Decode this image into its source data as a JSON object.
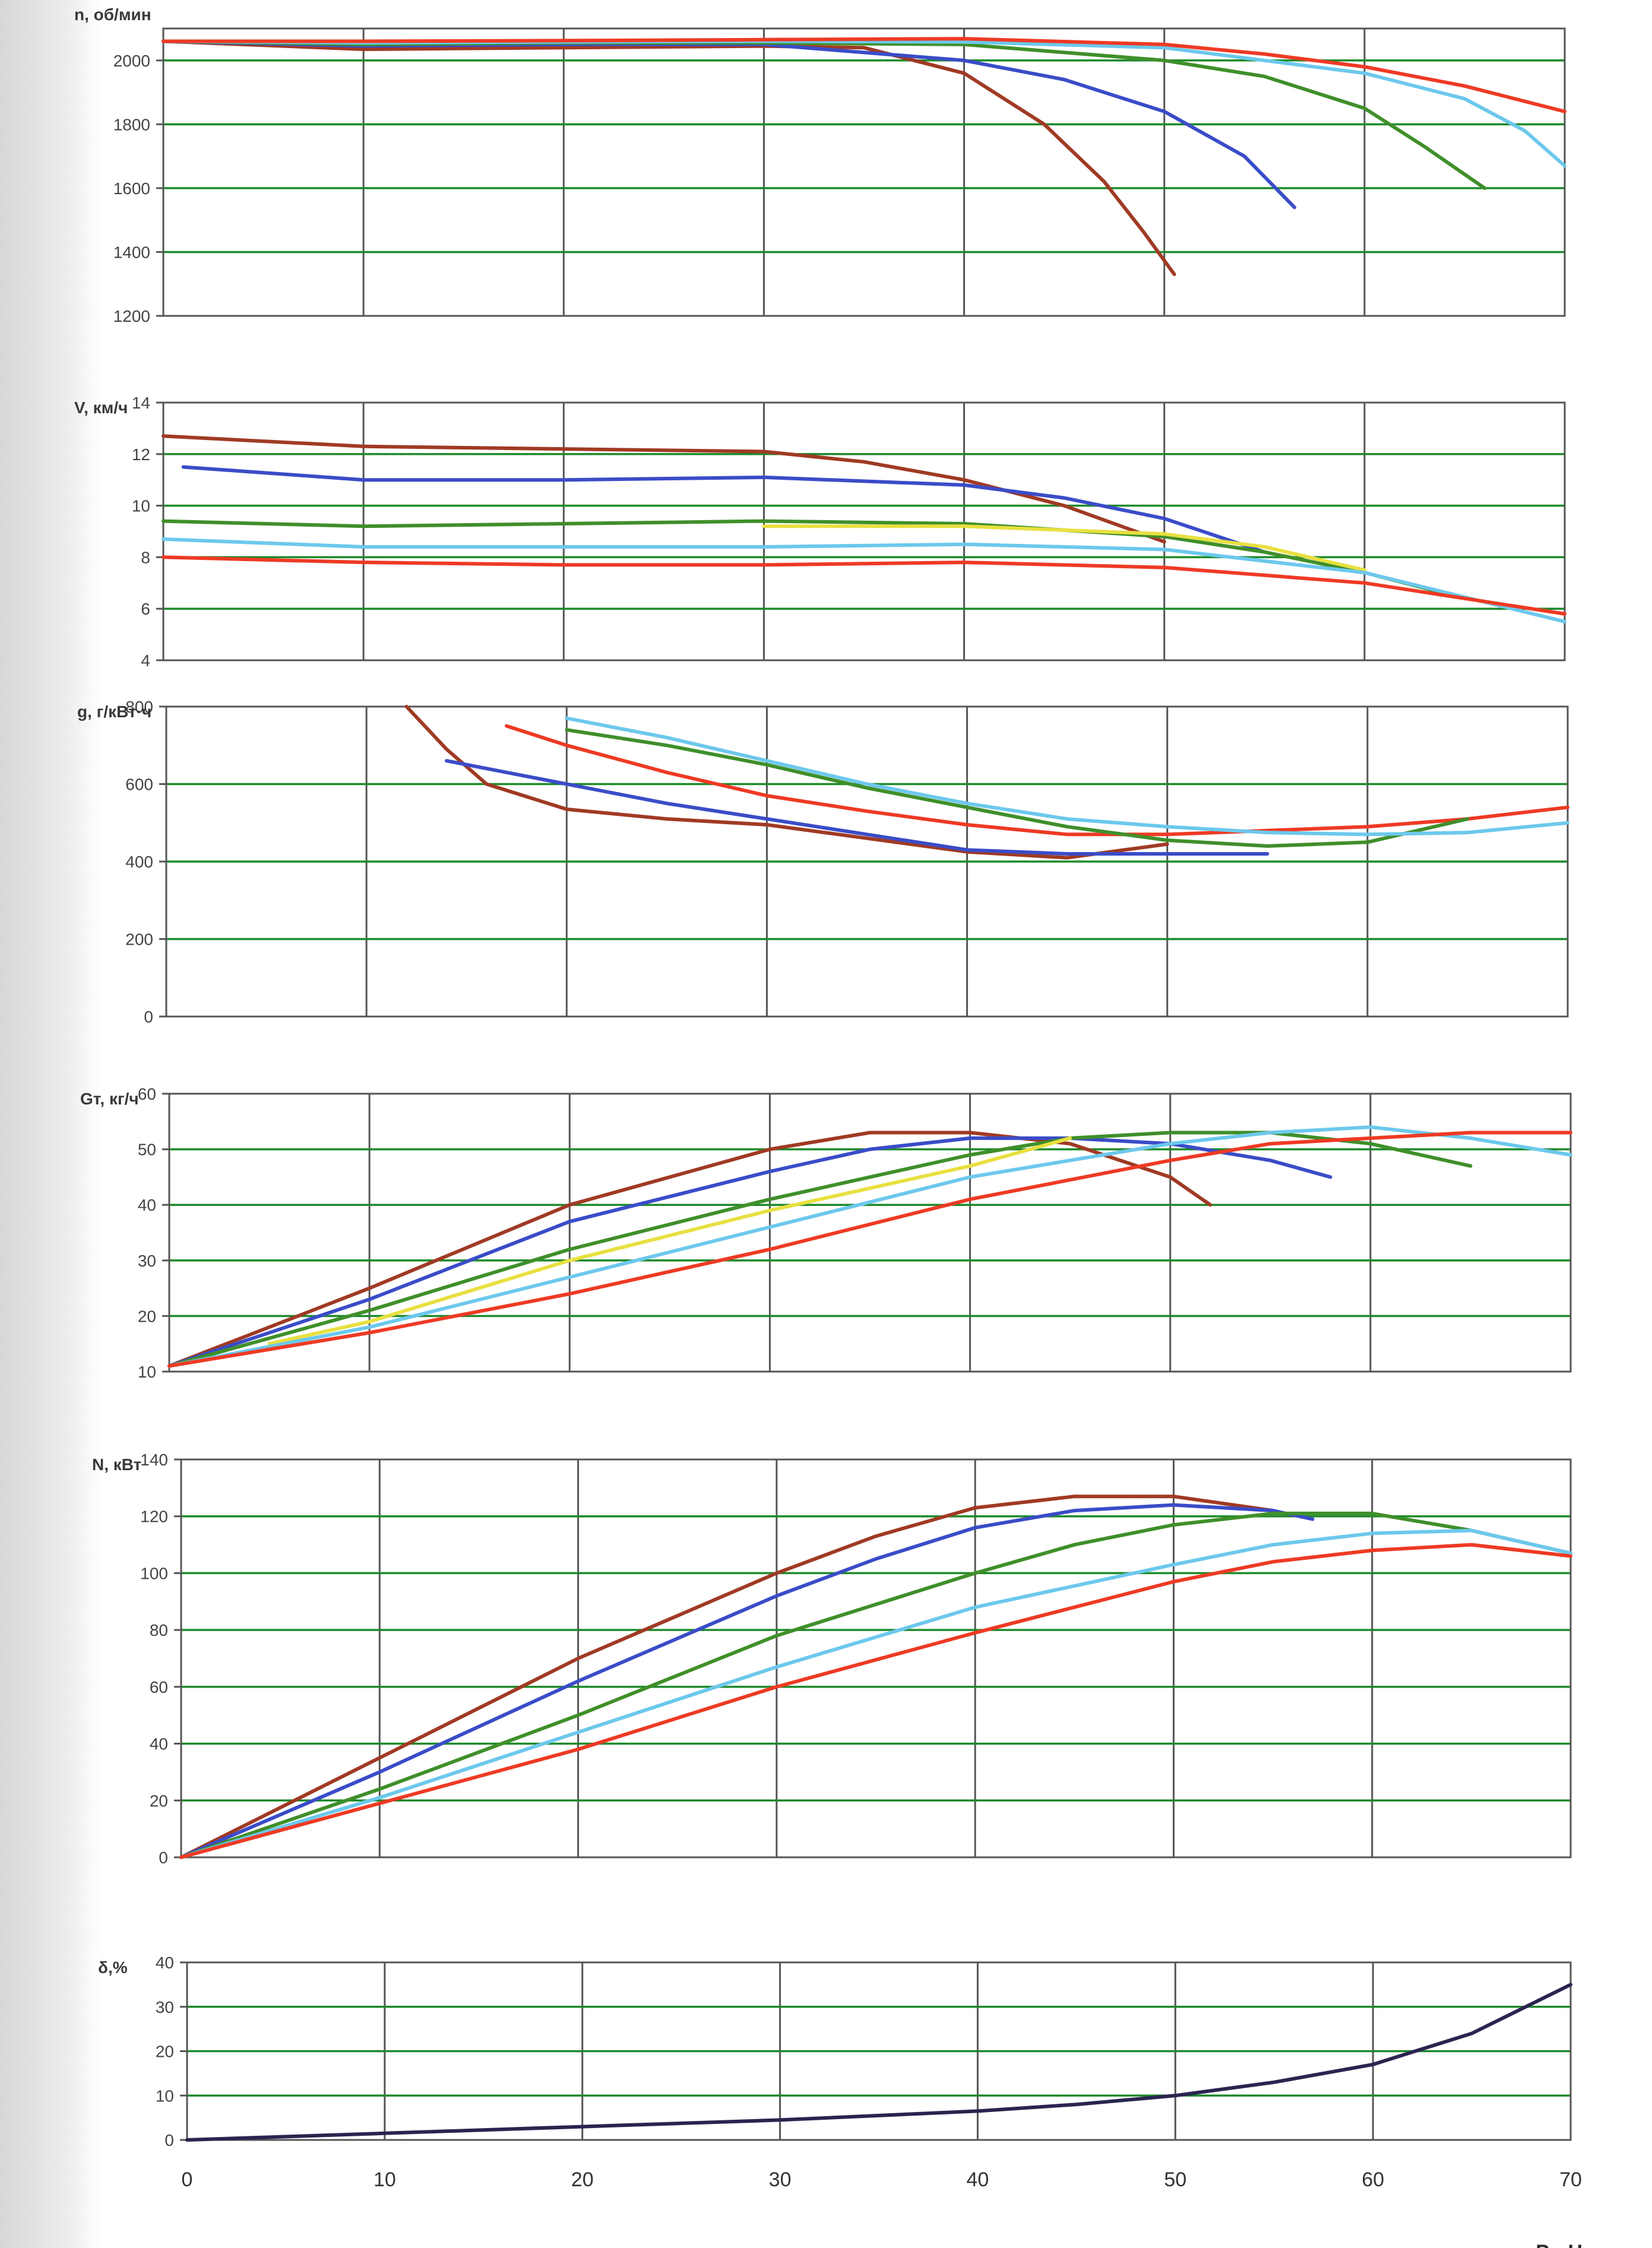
{
  "chart_data": [
    {
      "type": "line",
      "ylabel": "n, об/мин",
      "ylim": [
        1200,
        2100
      ],
      "yticks": [
        1200,
        1400,
        1600,
        1800,
        2000
      ],
      "xlim": [
        0,
        70
      ],
      "grid": true,
      "series": [
        {
          "color": "#a03a24",
          "x": [
            0,
            10,
            20,
            30,
            35,
            40,
            44,
            47,
            49,
            50.5
          ],
          "y": [
            2060,
            2035,
            2040,
            2045,
            2040,
            1960,
            1800,
            1620,
            1460,
            1330
          ]
        },
        {
          "color": "#3a4cc8",
          "x": [
            0,
            10,
            20,
            30,
            40,
            45,
            50,
            54,
            56.5
          ],
          "y": [
            2060,
            2045,
            2050,
            2050,
            2000,
            1940,
            1840,
            1700,
            1540
          ]
        },
        {
          "color": "#3f8f2a",
          "x": [
            0,
            10,
            20,
            30,
            40,
            50,
            55,
            60,
            63,
            66
          ],
          "y": [
            2060,
            2050,
            2055,
            2055,
            2050,
            2000,
            1950,
            1850,
            1730,
            1600
          ]
        },
        {
          "color": "#6cc8ec",
          "x": [
            0,
            10,
            20,
            30,
            40,
            50,
            60,
            65,
            68,
            70
          ],
          "y": [
            2060,
            2055,
            2058,
            2060,
            2058,
            2040,
            1960,
            1880,
            1780,
            1670
          ]
        },
        {
          "color": "#ee3a24",
          "x": [
            0,
            10,
            20,
            30,
            40,
            50,
            55,
            60,
            65,
            70
          ],
          "y": [
            2060,
            2060,
            2062,
            2065,
            2068,
            2050,
            2020,
            1980,
            1920,
            1840
          ]
        }
      ]
    },
    {
      "type": "line",
      "ylabel": "V, км/ч",
      "ylim": [
        4,
        14
      ],
      "yticks": [
        4,
        6,
        8,
        10,
        12,
        14
      ],
      "xlim": [
        0,
        70
      ],
      "grid": true,
      "series": [
        {
          "color": "#a03a24",
          "x": [
            0,
            10,
            20,
            30,
            35,
            40,
            45,
            50
          ],
          "y": [
            12.7,
            12.3,
            12.2,
            12.1,
            11.7,
            11.0,
            10.0,
            8.6
          ]
        },
        {
          "color": "#3a4cc8",
          "x": [
            1,
            10,
            20,
            30,
            40,
            45,
            50,
            55
          ],
          "y": [
            11.5,
            11.0,
            11.0,
            11.1,
            10.8,
            10.3,
            9.5,
            8.2
          ]
        },
        {
          "color": "#3f8f2a",
          "x": [
            0,
            10,
            20,
            30,
            40,
            50,
            55,
            60,
            65
          ],
          "y": [
            9.4,
            9.2,
            9.3,
            9.4,
            9.3,
            8.8,
            8.2,
            7.4,
            6.4
          ]
        },
        {
          "color": "#e8e040",
          "x": [
            30,
            40,
            50,
            55,
            60
          ],
          "y": [
            9.2,
            9.2,
            8.9,
            8.4,
            7.5
          ]
        },
        {
          "color": "#6cc8ec",
          "x": [
            0,
            10,
            20,
            30,
            40,
            50,
            60,
            70
          ],
          "y": [
            8.7,
            8.4,
            8.4,
            8.4,
            8.5,
            8.3,
            7.4,
            5.5
          ]
        },
        {
          "color": "#ee3a24",
          "x": [
            0,
            10,
            20,
            30,
            40,
            50,
            60,
            70
          ],
          "y": [
            8.0,
            7.8,
            7.7,
            7.7,
            7.8,
            7.6,
            7.0,
            5.8
          ]
        }
      ]
    },
    {
      "type": "line",
      "ylabel": "g, г/кВт·ч",
      "ylim": [
        0,
        800
      ],
      "yticks": [
        0,
        200,
        400,
        600,
        800
      ],
      "xlim": [
        0,
        70
      ],
      "grid": true,
      "series": [
        {
          "color": "#a03a24",
          "x": [
            12,
            14,
            16,
            20,
            25,
            30,
            35,
            40,
            45,
            50
          ],
          "y": [
            800,
            690,
            600,
            535,
            510,
            495,
            460,
            425,
            410,
            445
          ]
        },
        {
          "color": "#3a4cc8",
          "x": [
            14,
            20,
            25,
            30,
            35,
            40,
            45,
            50,
            55
          ],
          "y": [
            660,
            600,
            550,
            510,
            470,
            430,
            420,
            420,
            420
          ]
        },
        {
          "color": "#ee3a24",
          "x": [
            17,
            20,
            25,
            30,
            35,
            40,
            45,
            50,
            55,
            60,
            65,
            70
          ],
          "y": [
            750,
            700,
            630,
            570,
            530,
            495,
            470,
            470,
            480,
            490,
            510,
            540
          ]
        },
        {
          "color": "#3f8f2a",
          "x": [
            20,
            25,
            30,
            35,
            40,
            45,
            50,
            55,
            60,
            65
          ],
          "y": [
            740,
            700,
            650,
            590,
            540,
            490,
            455,
            440,
            450,
            510
          ]
        },
        {
          "color": "#6cc8ec",
          "x": [
            20,
            25,
            30,
            35,
            40,
            45,
            50,
            55,
            60,
            65,
            70
          ],
          "y": [
            770,
            720,
            660,
            600,
            550,
            510,
            490,
            475,
            470,
            475,
            500
          ]
        }
      ]
    },
    {
      "type": "line",
      "ylabel": "Gт, кг/ч",
      "ylim": [
        10,
        60
      ],
      "yticks": [
        10,
        20,
        30,
        40,
        50,
        60
      ],
      "xlim": [
        0,
        70
      ],
      "grid": true,
      "series": [
        {
          "color": "#a03a24",
          "x": [
            0,
            10,
            20,
            30,
            35,
            40,
            45,
            50,
            52
          ],
          "y": [
            11,
            25,
            40,
            50,
            53,
            53,
            51,
            45,
            40
          ]
        },
        {
          "color": "#3a4cc8",
          "x": [
            0,
            10,
            20,
            30,
            35,
            40,
            45,
            50,
            55,
            58
          ],
          "y": [
            11,
            23,
            37,
            46,
            50,
            52,
            52,
            51,
            48,
            45
          ]
        },
        {
          "color": "#3f8f2a",
          "x": [
            0,
            10,
            20,
            30,
            40,
            45,
            50,
            55,
            60,
            65
          ],
          "y": [
            11,
            21,
            32,
            41,
            49,
            52,
            53,
            53,
            51,
            47
          ]
        },
        {
          "color": "#e8e040",
          "x": [
            5,
            10,
            20,
            30,
            40,
            45
          ],
          "y": [
            15,
            19,
            30,
            39,
            47,
            52
          ]
        },
        {
          "color": "#6cc8ec",
          "x": [
            0,
            10,
            20,
            30,
            40,
            50,
            55,
            60,
            65,
            70
          ],
          "y": [
            11,
            18,
            27,
            36,
            45,
            51,
            53,
            54,
            52,
            49
          ]
        },
        {
          "color": "#ee3a24",
          "x": [
            0,
            10,
            20,
            30,
            40,
            50,
            55,
            60,
            65,
            70
          ],
          "y": [
            11,
            17,
            24,
            32,
            41,
            48,
            51,
            52,
            53,
            53
          ]
        }
      ]
    },
    {
      "type": "line",
      "ylabel": "N, кВт",
      "ylim": [
        0,
        140
      ],
      "yticks": [
        0,
        20,
        40,
        60,
        80,
        100,
        120,
        140
      ],
      "xlim": [
        0,
        70
      ],
      "grid": true,
      "series": [
        {
          "color": "#a03a24",
          "x": [
            0,
            10,
            20,
            30,
            35,
            40,
            45,
            50,
            55
          ],
          "y": [
            0,
            35,
            70,
            100,
            113,
            123,
            127,
            127,
            122
          ]
        },
        {
          "color": "#3a4cc8",
          "x": [
            0,
            10,
            20,
            30,
            35,
            40,
            45,
            50,
            55,
            57
          ],
          "y": [
            0,
            30,
            62,
            92,
            105,
            116,
            122,
            124,
            122,
            119
          ]
        },
        {
          "color": "#3f8f2a",
          "x": [
            0,
            10,
            20,
            30,
            40,
            45,
            50,
            55,
            60,
            65,
            70
          ],
          "y": [
            0,
            24,
            50,
            78,
            100,
            110,
            117,
            121,
            121,
            115,
            107
          ]
        },
        {
          "color": "#6cc8ec",
          "x": [
            0,
            10,
            20,
            30,
            40,
            50,
            55,
            60,
            65,
            70
          ],
          "y": [
            0,
            21,
            44,
            67,
            88,
            103,
            110,
            114,
            115,
            107
          ]
        },
        {
          "color": "#ee3a24",
          "x": [
            0,
            10,
            20,
            30,
            40,
            50,
            55,
            60,
            65,
            70
          ],
          "y": [
            0,
            19,
            38,
            60,
            79,
            97,
            104,
            108,
            110,
            106
          ]
        }
      ]
    },
    {
      "type": "line",
      "ylabel": "δ,%",
      "ylim": [
        0,
        40
      ],
      "yticks": [
        0,
        10,
        20,
        30,
        40
      ],
      "xlim": [
        0,
        70
      ],
      "xticks": [
        0,
        10,
        20,
        30,
        40,
        50,
        60,
        70
      ],
      "xlabel": "P, кН",
      "grid": true,
      "series": [
        {
          "color": "#2a2450",
          "x": [
            0,
            10,
            20,
            30,
            40,
            45,
            50,
            55,
            60,
            65,
            70
          ],
          "y": [
            0,
            1.5,
            3,
            4.5,
            6.5,
            8,
            10,
            13,
            17,
            24,
            35
          ]
        }
      ]
    }
  ]
}
